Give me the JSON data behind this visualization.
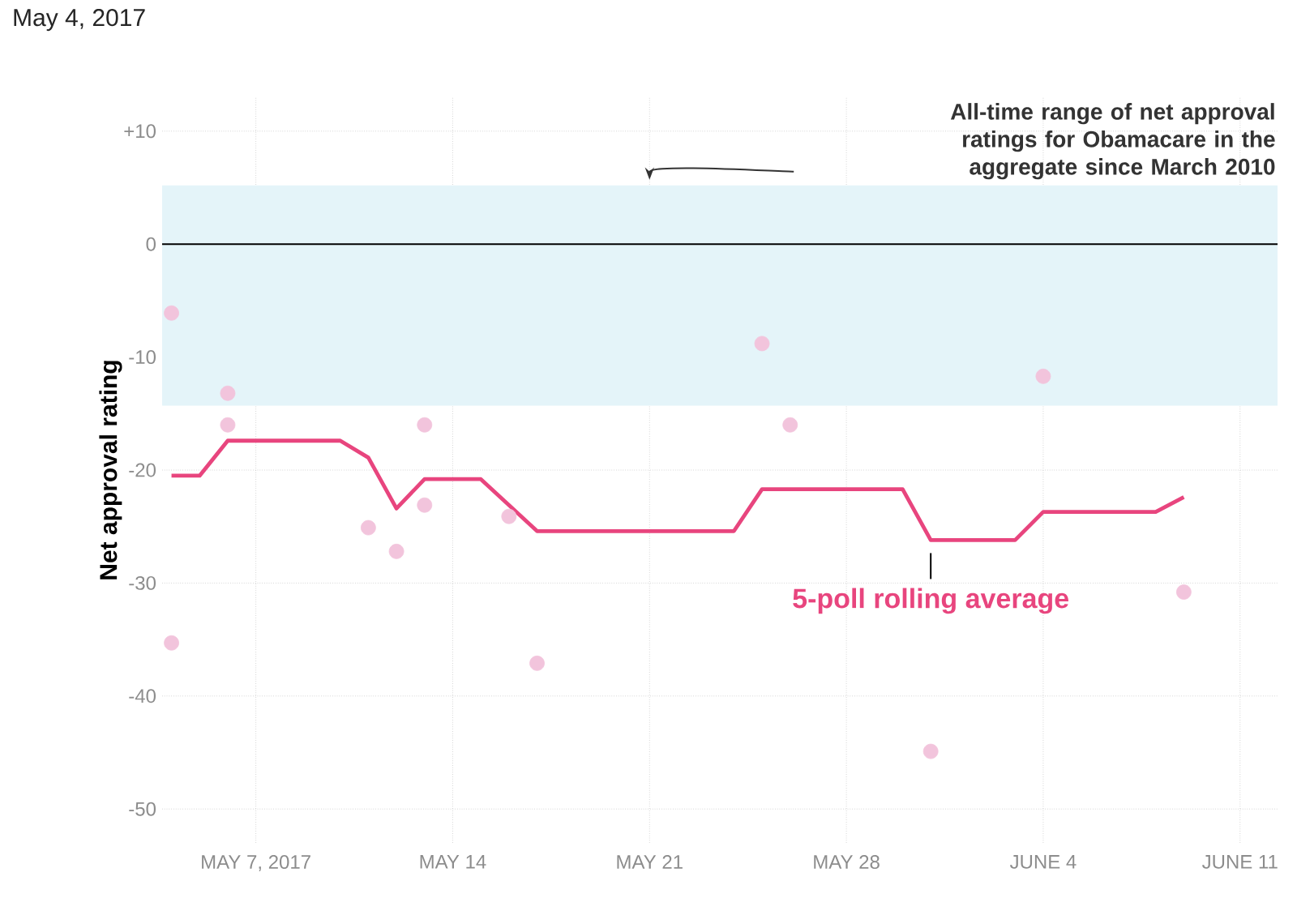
{
  "chart_data": {
    "type": "scatter",
    "title": "May 4, 2017",
    "ylabel": "Net approval rating",
    "xlim": [
      "2017-05-03T16:00",
      "2017-06-12T08:00"
    ],
    "xticks": [
      {
        "value": "2017-05-07",
        "label": "MAY 7, 2017"
      },
      {
        "value": "2017-05-14",
        "label": "MAY 14"
      },
      {
        "value": "2017-05-21",
        "label": "MAY 21"
      },
      {
        "value": "2017-05-28",
        "label": "MAY 28"
      },
      {
        "value": "2017-06-04",
        "label": "JUNE 4"
      },
      {
        "value": "2017-06-11",
        "label": "JUNE 11"
      }
    ],
    "ylim": [
      -53,
      13
    ],
    "yticks": [
      {
        "value": 10,
        "label": "+10"
      },
      0,
      -10,
      -20,
      -30,
      -40,
      -50
    ],
    "grid": true,
    "legend": false,
    "series": [
      {
        "marker": "circle",
        "color": "#f2c4dc",
        "x": [
          "2017-05-04",
          "2017-05-04",
          "2017-05-06",
          "2017-05-06",
          "2017-05-11",
          "2017-05-12",
          "2017-05-13",
          "2017-05-13",
          "2017-05-16",
          "2017-05-17",
          "2017-05-25",
          "2017-05-26",
          "2017-05-31",
          "2017-06-04",
          "2017-06-09"
        ],
        "values": [
          -6.1,
          -35.3,
          -13.2,
          -16.0,
          -25.1,
          -27.2,
          -16.0,
          -23.1,
          -24.1,
          -37.1,
          -8.8,
          -16.0,
          -44.9,
          -11.7,
          -30.8
        ]
      },
      {
        "type": "line",
        "marker": "none",
        "line_style": "solid",
        "name": "5-poll rolling average",
        "color": "#e8457e",
        "x": [
          "2017-05-04",
          "2017-05-05",
          "2017-05-06",
          "2017-05-10",
          "2017-05-11",
          "2017-05-12",
          "2017-05-13",
          "2017-05-15",
          "2017-05-17",
          "2017-05-24",
          "2017-05-25",
          "2017-05-30",
          "2017-05-31",
          "2017-06-03",
          "2017-06-04",
          "2017-06-08",
          "2017-06-09"
        ],
        "values": [
          -20.5,
          -20.5,
          -17.4,
          -17.4,
          -18.9,
          -23.4,
          -20.8,
          -20.8,
          -25.4,
          -25.4,
          -21.7,
          -21.7,
          -26.2,
          -26.2,
          -23.7,
          -23.7,
          -22.4
        ]
      }
    ],
    "ref_lines": [
      {
        "axis": "y",
        "value": 0,
        "color": "#000000"
      }
    ],
    "bands": [
      {
        "axis": "y",
        "from": -14.3,
        "to": 5.2,
        "color": "#e4f4f9",
        "label": "All-time range of net approval ratings for Obamacare in the aggregate since March 2010"
      }
    ]
  }
}
